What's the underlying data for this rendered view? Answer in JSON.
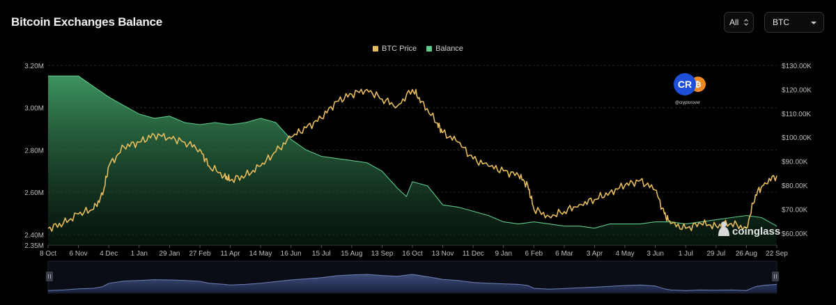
{
  "header": {
    "title": "Bitcoin Exchanges Balance",
    "range_select": "All",
    "asset_select": "BTC"
  },
  "watermark": {
    "creator_handle": "@cryptorover",
    "creator_logo": "CR",
    "brand": "coinglass"
  },
  "colors": {
    "price": "#e8bd5e",
    "balance": "#5fc98b",
    "navigator": "#3d4c78"
  },
  "chart_data": {
    "type": "area",
    "legend": [
      "BTC Price",
      "Balance"
    ],
    "legend_position": "top-center",
    "x_tick_labels": [
      "8 Oct",
      "6 Nov",
      "4 Dec",
      "1 Jan",
      "29 Jan",
      "27 Feb",
      "11 Apr",
      "14 May",
      "16 Jun",
      "15 Jul",
      "15 Aug",
      "13 Sep",
      "16 Oct",
      "13 Nov",
      "11 Dec",
      "9 Jan",
      "6 Feb",
      "6 Mar",
      "3 Apr",
      "4 May",
      "3 Jun",
      "1 Jul",
      "29 Jul",
      "26 Aug",
      "22 Sep"
    ],
    "left_axis": {
      "label": "Balance",
      "ticks": [
        "2.35M",
        "2.40M",
        "2.60M",
        "2.80M",
        "3.00M",
        "3.20M"
      ],
      "range": [
        2.35,
        3.2
      ],
      "unit": "M"
    },
    "right_axis": {
      "label": "BTC Price",
      "ticks": [
        "$60.00K",
        "$70.00K",
        "$80.00K",
        "$90.00K",
        "$100.00K",
        "$110.00K",
        "$120.00K",
        "$130.00K"
      ],
      "range": [
        55,
        130
      ],
      "unit": "K"
    },
    "grid": true,
    "series": [
      {
        "name": "Balance",
        "axis": "left",
        "points": [
          [
            0,
            3.15
          ],
          [
            1,
            3.15
          ],
          [
            1.5,
            3.1
          ],
          [
            2,
            3.05
          ],
          [
            2.5,
            3.01
          ],
          [
            3,
            2.97
          ],
          [
            3.5,
            2.95
          ],
          [
            4,
            2.96
          ],
          [
            4.5,
            2.93
          ],
          [
            5,
            2.92
          ],
          [
            5.5,
            2.93
          ],
          [
            6,
            2.92
          ],
          [
            6.5,
            2.93
          ],
          [
            7,
            2.95
          ],
          [
            7.5,
            2.93
          ],
          [
            8,
            2.85
          ],
          [
            8.5,
            2.8
          ],
          [
            9,
            2.77
          ],
          [
            9.5,
            2.76
          ],
          [
            10,
            2.75
          ],
          [
            10.5,
            2.74
          ],
          [
            11,
            2.7
          ],
          [
            11.5,
            2.62
          ],
          [
            11.8,
            2.58
          ],
          [
            12,
            2.65
          ],
          [
            12.5,
            2.63
          ],
          [
            13,
            2.54
          ],
          [
            13.5,
            2.53
          ],
          [
            14,
            2.51
          ],
          [
            14.5,
            2.49
          ],
          [
            15,
            2.46
          ],
          [
            15.5,
            2.45
          ],
          [
            16,
            2.46
          ],
          [
            16.5,
            2.45
          ],
          [
            17,
            2.44
          ],
          [
            17.5,
            2.44
          ],
          [
            18,
            2.43
          ],
          [
            18.5,
            2.45
          ],
          [
            19,
            2.45
          ],
          [
            19.5,
            2.45
          ],
          [
            20,
            2.46
          ],
          [
            20.5,
            2.46
          ],
          [
            21,
            2.45
          ],
          [
            21.5,
            2.46
          ],
          [
            22,
            2.47
          ],
          [
            22.5,
            2.48
          ],
          [
            23,
            2.49
          ],
          [
            23.5,
            2.48
          ],
          [
            24,
            2.44
          ]
        ]
      },
      {
        "name": "BTC Price",
        "axis": "right",
        "points": [
          [
            0,
            62
          ],
          [
            0.5,
            64
          ],
          [
            1,
            68
          ],
          [
            1.5,
            70
          ],
          [
            1.8,
            76
          ],
          [
            2,
            88
          ],
          [
            2.5,
            96
          ],
          [
            3,
            98
          ],
          [
            3.5,
            101
          ],
          [
            4,
            100
          ],
          [
            4.5,
            98
          ],
          [
            5,
            95
          ],
          [
            5.3,
            88
          ],
          [
            5.8,
            84
          ],
          [
            6,
            82
          ],
          [
            6.5,
            84
          ],
          [
            7,
            88
          ],
          [
            7.5,
            94
          ],
          [
            8,
            100
          ],
          [
            8.5,
            104
          ],
          [
            9,
            108
          ],
          [
            9.5,
            115
          ],
          [
            10,
            118
          ],
          [
            10.5,
            120
          ],
          [
            11,
            116
          ],
          [
            11.5,
            113
          ],
          [
            12,
            120
          ],
          [
            12.3,
            115
          ],
          [
            12.8,
            106
          ],
          [
            13,
            102
          ],
          [
            13.5,
            98
          ],
          [
            14,
            91
          ],
          [
            14.5,
            88
          ],
          [
            15,
            86
          ],
          [
            15.5,
            84
          ],
          [
            15.8,
            80
          ],
          [
            16,
            70
          ],
          [
            16.5,
            67
          ],
          [
            17,
            69
          ],
          [
            17.5,
            72
          ],
          [
            18,
            74
          ],
          [
            18.5,
            77
          ],
          [
            19,
            80
          ],
          [
            19.5,
            82
          ],
          [
            20,
            78
          ],
          [
            20.3,
            68
          ],
          [
            20.5,
            64
          ],
          [
            21,
            62
          ],
          [
            21.5,
            64
          ],
          [
            22,
            63
          ],
          [
            22.5,
            64
          ],
          [
            23,
            62
          ],
          [
            23.3,
            76
          ],
          [
            23.6,
            81
          ],
          [
            24,
            84
          ]
        ]
      }
    ]
  }
}
